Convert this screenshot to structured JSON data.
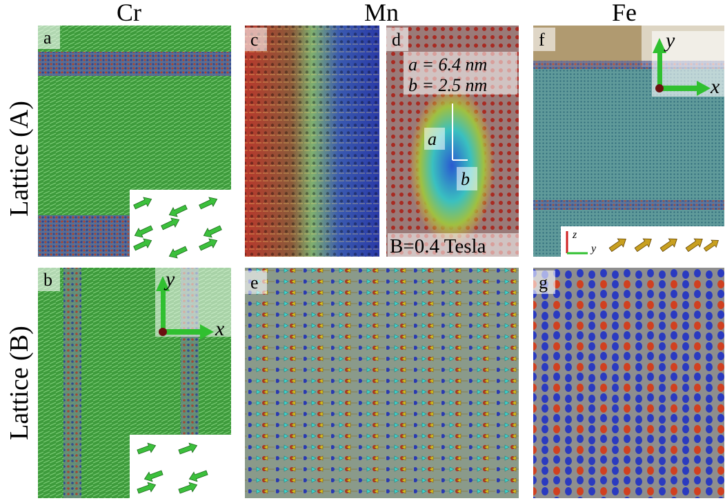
{
  "columns": [
    "Cr",
    "Mn",
    "Fe"
  ],
  "rows": [
    "Lattice (A)",
    "Lattice (B)"
  ],
  "panel_labels": [
    "a",
    "b",
    "c",
    "d",
    "e",
    "f",
    "g"
  ],
  "annotations": {
    "a_length": "a = 6.4 nm",
    "b_length": "b = 2.5 nm",
    "a_marker": "a",
    "b_marker": "b",
    "field": "B=0.4 Tesla"
  },
  "axes": {
    "b": {
      "y": "y",
      "x": "x"
    },
    "f": {
      "y": "y",
      "x": "x",
      "z_small": "z",
      "y_small": "y"
    }
  }
}
